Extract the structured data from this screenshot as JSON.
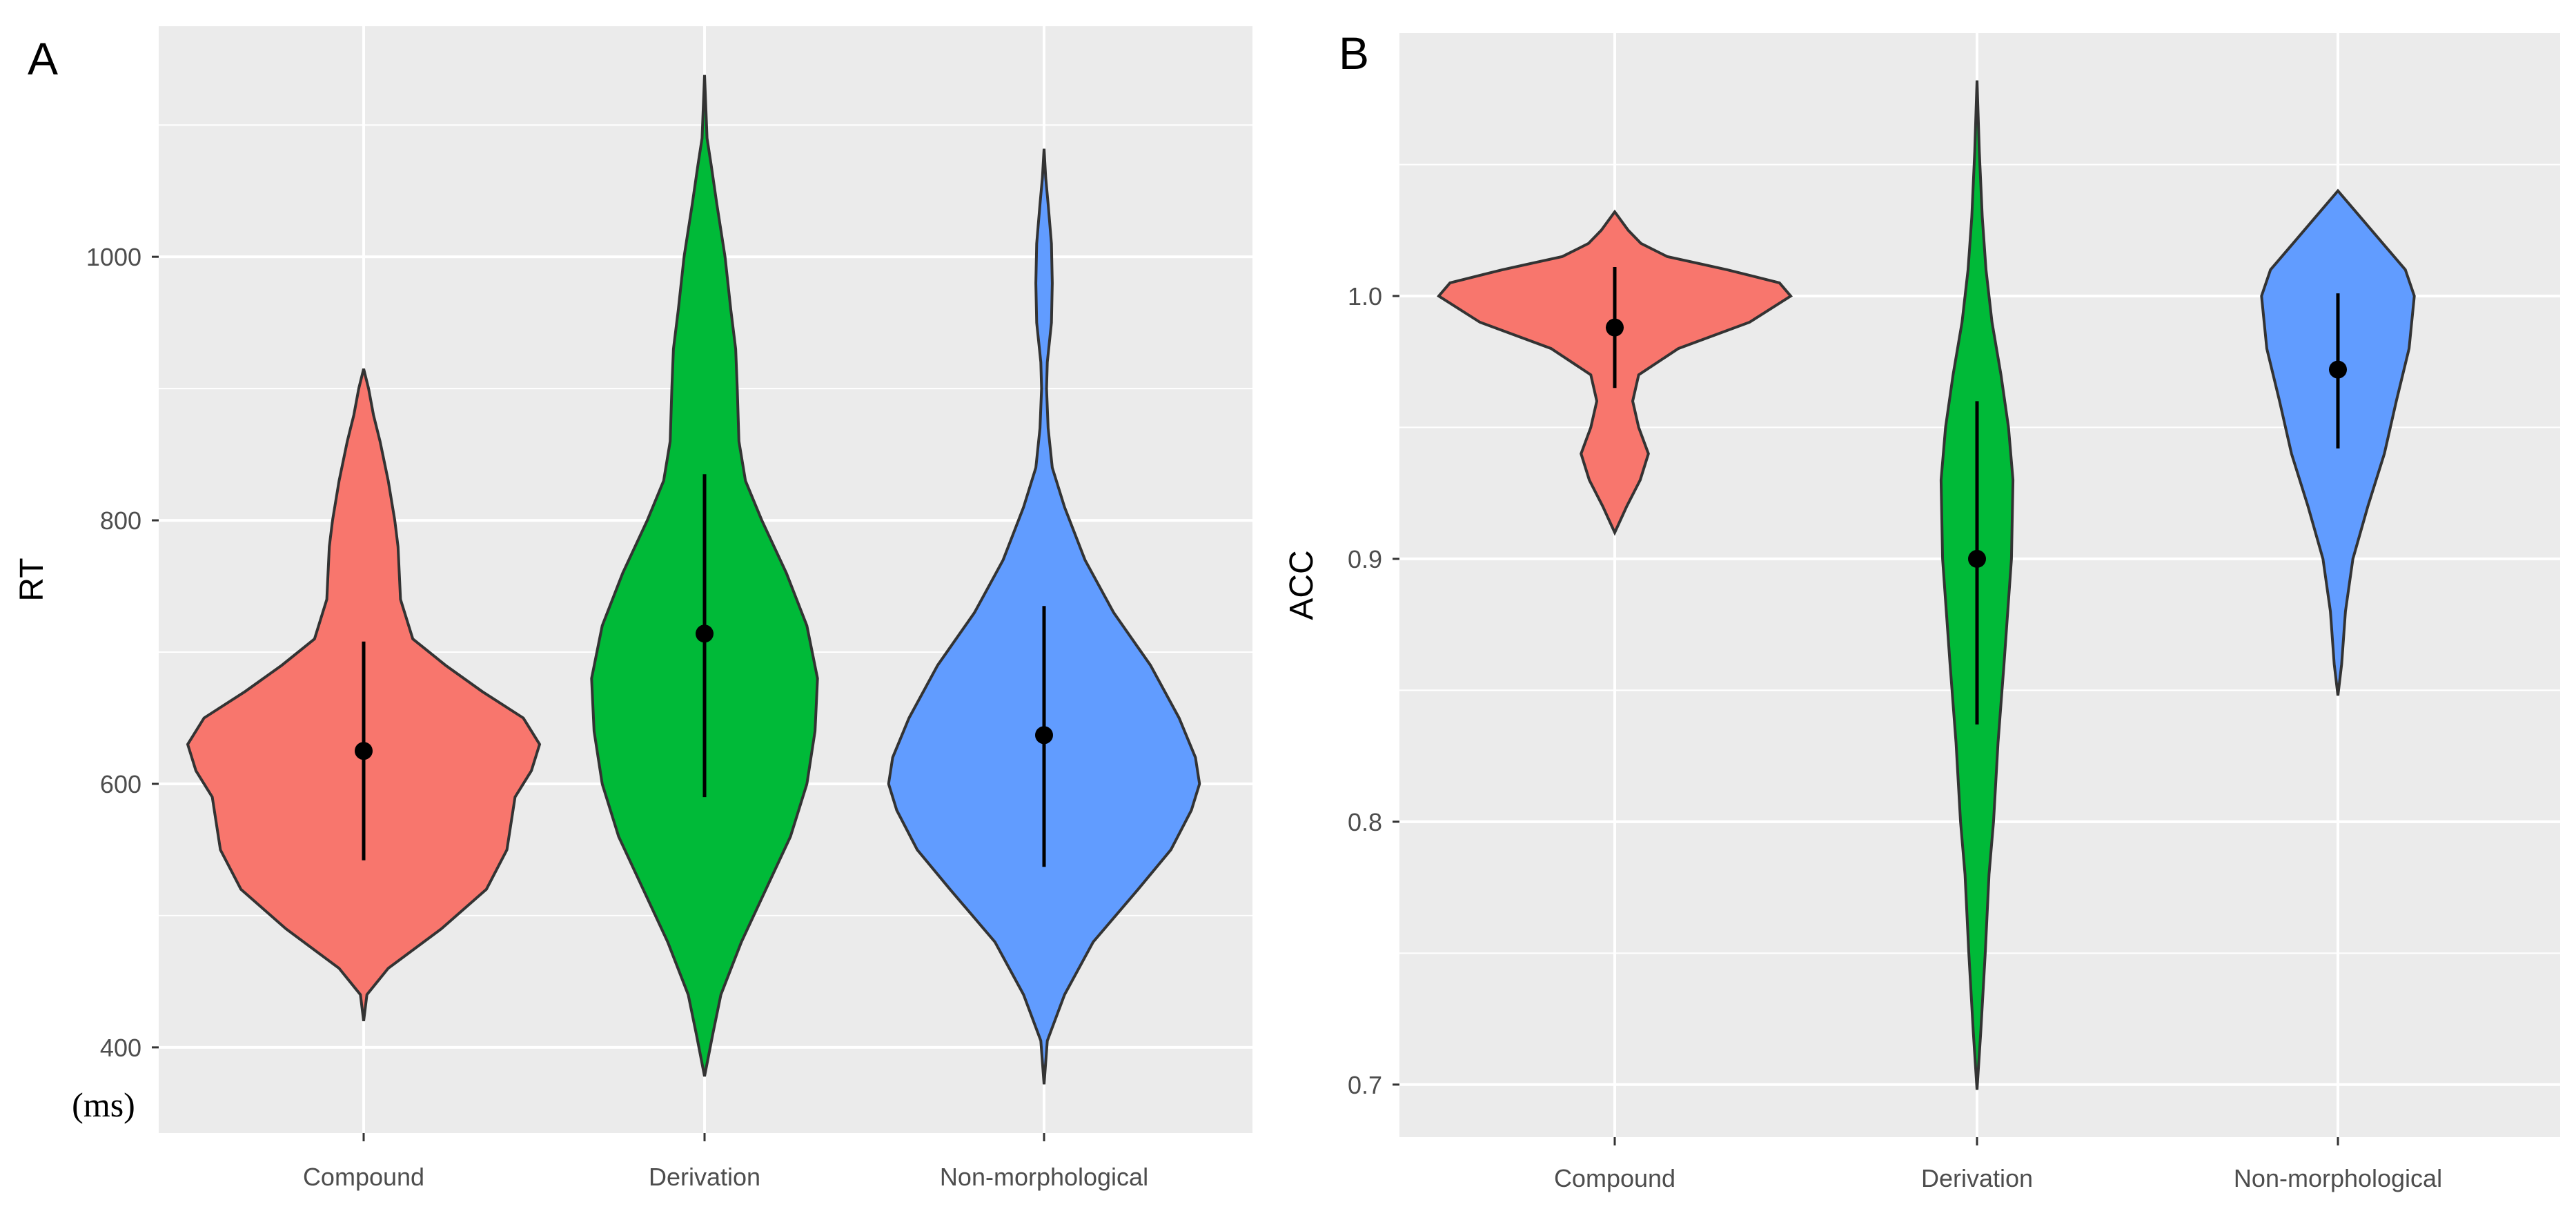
{
  "chart_data": [
    {
      "type": "violin",
      "panel_label": "A",
      "title": "",
      "xlabel": "",
      "ylabel": "RT",
      "unit": "(ms)",
      "ylim": [
        335,
        1175
      ],
      "yticks": [
        400,
        600,
        800,
        1000
      ],
      "ytick_labels": [
        "400",
        "600",
        "800",
        "1000"
      ],
      "categories": [
        "Compound",
        "Derivation",
        "Non-morphological"
      ],
      "colors": [
        "#F8766D",
        "#00BA38",
        "#619CFF"
      ],
      "grid": true,
      "legend": "none",
      "series": [
        {
          "name": "Compound",
          "mean": 625,
          "lower": 542,
          "upper": 708,
          "min": 420,
          "max": 915,
          "profile": [
            [
              420,
              0
            ],
            [
              440,
              4
            ],
            [
              460,
              30
            ],
            [
              490,
              95
            ],
            [
              520,
              150
            ],
            [
              550,
              175
            ],
            [
              570,
              180
            ],
            [
              590,
              185
            ],
            [
              610,
              205
            ],
            [
              630,
              215
            ],
            [
              650,
              195
            ],
            [
              670,
              145
            ],
            [
              690,
              100
            ],
            [
              710,
              60
            ],
            [
              740,
              45
            ],
            [
              780,
              42
            ],
            [
              800,
              38
            ],
            [
              830,
              30
            ],
            [
              860,
              20
            ],
            [
              880,
              12
            ],
            [
              900,
              6
            ],
            [
              915,
              0
            ]
          ]
        },
        {
          "name": "Derivation",
          "mean": 714,
          "lower": 590,
          "upper": 835,
          "min": 378,
          "max": 1138,
          "profile": [
            [
              378,
              0
            ],
            [
              410,
              10
            ],
            [
              440,
              20
            ],
            [
              480,
              45
            ],
            [
              520,
              75
            ],
            [
              560,
              105
            ],
            [
              600,
              125
            ],
            [
              640,
              135
            ],
            [
              680,
              138
            ],
            [
              720,
              125
            ],
            [
              760,
              100
            ],
            [
              800,
              70
            ],
            [
              830,
              50
            ],
            [
              860,
              42
            ],
            [
              900,
              40
            ],
            [
              930,
              38
            ],
            [
              960,
              32
            ],
            [
              1000,
              25
            ],
            [
              1040,
              15
            ],
            [
              1070,
              8
            ],
            [
              1090,
              3
            ],
            [
              1138,
              0
            ]
          ]
        },
        {
          "name": "Non-morphological",
          "mean": 637,
          "lower": 537,
          "upper": 735,
          "min": 372,
          "max": 1082,
          "profile": [
            [
              372,
              0
            ],
            [
              405,
              4
            ],
            [
              440,
              25
            ],
            [
              480,
              60
            ],
            [
              520,
              115
            ],
            [
              550,
              155
            ],
            [
              580,
              180
            ],
            [
              600,
              190
            ],
            [
              620,
              185
            ],
            [
              650,
              165
            ],
            [
              690,
              130
            ],
            [
              730,
              85
            ],
            [
              770,
              50
            ],
            [
              810,
              25
            ],
            [
              840,
              10
            ],
            [
              870,
              5
            ],
            [
              900,
              3
            ],
            [
              920,
              4
            ],
            [
              950,
              9
            ],
            [
              980,
              10
            ],
            [
              1010,
              9
            ],
            [
              1040,
              5
            ],
            [
              1060,
              2
            ],
            [
              1082,
              0
            ]
          ]
        }
      ]
    },
    {
      "type": "violin",
      "panel_label": "B",
      "title": "",
      "xlabel": "",
      "ylabel": "ACC",
      "ylim": [
        0.68,
        1.1
      ],
      "yticks": [
        0.7,
        0.8,
        0.9,
        1.0
      ],
      "ytick_labels": [
        "0.7",
        "0.8",
        "0.9",
        "1.0"
      ],
      "categories": [
        "Compound",
        "Derivation",
        "Non-morphological"
      ],
      "colors": [
        "#F8766D",
        "#00BA38",
        "#619CFF"
      ],
      "grid": true,
      "legend": "none",
      "series": [
        {
          "name": "Compound",
          "mean": 0.988,
          "lower": 0.965,
          "upper": 1.011,
          "min": 0.91,
          "max": 1.032,
          "profile": [
            [
              0.91,
              0
            ],
            [
              0.915,
              8
            ],
            [
              0.92,
              16
            ],
            [
              0.93,
              34
            ],
            [
              0.94,
              45
            ],
            [
              0.95,
              32
            ],
            [
              0.96,
              24
            ],
            [
              0.97,
              32
            ],
            [
              0.98,
              85
            ],
            [
              0.99,
              180
            ],
            [
              1.0,
              235
            ],
            [
              1.005,
              220
            ],
            [
              1.01,
              150
            ],
            [
              1.015,
              70
            ],
            [
              1.02,
              35
            ],
            [
              1.025,
              18
            ],
            [
              1.032,
              0
            ]
          ]
        },
        {
          "name": "Derivation",
          "mean": 0.9,
          "lower": 0.837,
          "upper": 0.96,
          "min": 0.698,
          "max": 1.082,
          "profile": [
            [
              0.698,
              0
            ],
            [
              0.72,
              5
            ],
            [
              0.75,
              11
            ],
            [
              0.78,
              16
            ],
            [
              0.8,
              22
            ],
            [
              0.83,
              28
            ],
            [
              0.86,
              36
            ],
            [
              0.9,
              46
            ],
            [
              0.93,
              48
            ],
            [
              0.95,
              42
            ],
            [
              0.97,
              32
            ],
            [
              0.99,
              20
            ],
            [
              1.01,
              12
            ],
            [
              1.03,
              7
            ],
            [
              1.055,
              3
            ],
            [
              1.082,
              0
            ]
          ]
        },
        {
          "name": "Non-morphological",
          "mean": 0.972,
          "lower": 0.942,
          "upper": 1.001,
          "min": 0.848,
          "max": 1.04,
          "profile": [
            [
              0.848,
              0
            ],
            [
              0.86,
              5
            ],
            [
              0.88,
              10
            ],
            [
              0.9,
              20
            ],
            [
              0.92,
              40
            ],
            [
              0.94,
              62
            ],
            [
              0.96,
              78
            ],
            [
              0.98,
              95
            ],
            [
              1.0,
              102
            ],
            [
              1.01,
              90
            ],
            [
              1.02,
              60
            ],
            [
              1.03,
              30
            ],
            [
              1.04,
              0
            ]
          ]
        }
      ]
    }
  ]
}
